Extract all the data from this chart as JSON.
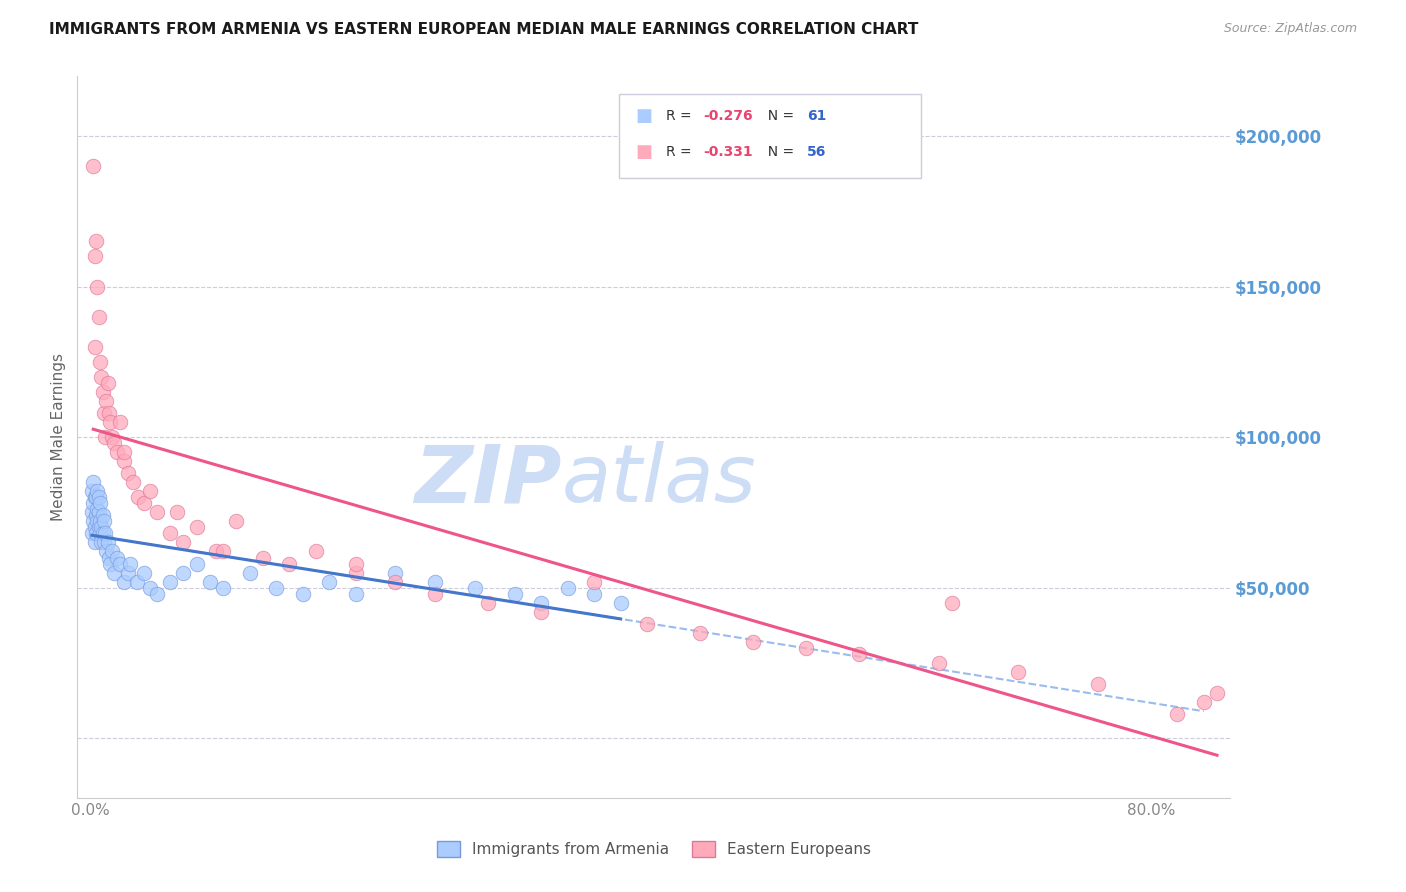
{
  "title": "IMMIGRANTS FROM ARMENIA VS EASTERN EUROPEAN MEDIAN MALE EARNINGS CORRELATION CHART",
  "source": "Source: ZipAtlas.com",
  "ylabel": "Median Male Earnings",
  "y_ticks": [
    0,
    50000,
    100000,
    150000,
    200000
  ],
  "y_tick_labels": [
    "",
    "$50,000",
    "$100,000",
    "$150,000",
    "$200,000"
  ],
  "y_tick_color": "#5b9bd5",
  "y_lim": [
    -20000,
    220000
  ],
  "x_lim": [
    -0.01,
    0.86
  ],
  "legend_r_color": "#e8446e",
  "legend_n_color": "#3366cc",
  "watermark_zip": "ZIP",
  "watermark_atlas": "atlas",
  "watermark_color": "#ccddf5",
  "background_color": "#ffffff",
  "grid_color": "#ccccdd",
  "series1_color": "#aaccff",
  "series1_edge": "#7799dd",
  "series2_color": "#ffaabb",
  "series2_edge": "#dd7799",
  "line1_color": "#4477cc",
  "line2_color": "#ee5588",
  "dashed_line_color": "#99bbee",
  "armenia_x": [
    0.001,
    0.001,
    0.001,
    0.002,
    0.002,
    0.002,
    0.003,
    0.003,
    0.003,
    0.004,
    0.004,
    0.004,
    0.005,
    0.005,
    0.005,
    0.006,
    0.006,
    0.006,
    0.007,
    0.007,
    0.007,
    0.008,
    0.008,
    0.009,
    0.009,
    0.01,
    0.01,
    0.011,
    0.012,
    0.013,
    0.014,
    0.015,
    0.016,
    0.018,
    0.02,
    0.022,
    0.025,
    0.028,
    0.03,
    0.035,
    0.04,
    0.045,
    0.05,
    0.06,
    0.07,
    0.08,
    0.09,
    0.1,
    0.12,
    0.14,
    0.16,
    0.18,
    0.2,
    0.23,
    0.26,
    0.29,
    0.32,
    0.34,
    0.36,
    0.38,
    0.4
  ],
  "armenia_y": [
    68000,
    75000,
    82000,
    72000,
    78000,
    85000,
    65000,
    70000,
    80000,
    68000,
    74000,
    80000,
    72000,
    76000,
    82000,
    70000,
    75000,
    80000,
    68000,
    72000,
    78000,
    65000,
    70000,
    68000,
    74000,
    65000,
    72000,
    68000,
    62000,
    65000,
    60000,
    58000,
    62000,
    55000,
    60000,
    58000,
    52000,
    55000,
    58000,
    52000,
    55000,
    50000,
    48000,
    52000,
    55000,
    58000,
    52000,
    50000,
    55000,
    50000,
    48000,
    52000,
    48000,
    55000,
    52000,
    50000,
    48000,
    45000,
    50000,
    48000,
    45000
  ],
  "eastern_x": [
    0.002,
    0.003,
    0.004,
    0.005,
    0.006,
    0.007,
    0.008,
    0.009,
    0.01,
    0.011,
    0.012,
    0.013,
    0.014,
    0.015,
    0.016,
    0.018,
    0.02,
    0.022,
    0.025,
    0.028,
    0.032,
    0.036,
    0.04,
    0.045,
    0.05,
    0.06,
    0.07,
    0.08,
    0.095,
    0.11,
    0.13,
    0.15,
    0.17,
    0.2,
    0.23,
    0.26,
    0.3,
    0.34,
    0.38,
    0.42,
    0.46,
    0.5,
    0.54,
    0.58,
    0.64,
    0.7,
    0.76,
    0.82,
    0.84,
    0.85,
    0.003,
    0.025,
    0.065,
    0.1,
    0.2,
    0.65
  ],
  "eastern_y": [
    190000,
    130000,
    165000,
    150000,
    140000,
    125000,
    120000,
    115000,
    108000,
    100000,
    112000,
    118000,
    108000,
    105000,
    100000,
    98000,
    95000,
    105000,
    92000,
    88000,
    85000,
    80000,
    78000,
    82000,
    75000,
    68000,
    65000,
    70000,
    62000,
    72000,
    60000,
    58000,
    62000,
    55000,
    52000,
    48000,
    45000,
    42000,
    52000,
    38000,
    35000,
    32000,
    30000,
    28000,
    25000,
    22000,
    18000,
    8000,
    12000,
    15000,
    160000,
    95000,
    75000,
    62000,
    58000,
    45000
  ]
}
